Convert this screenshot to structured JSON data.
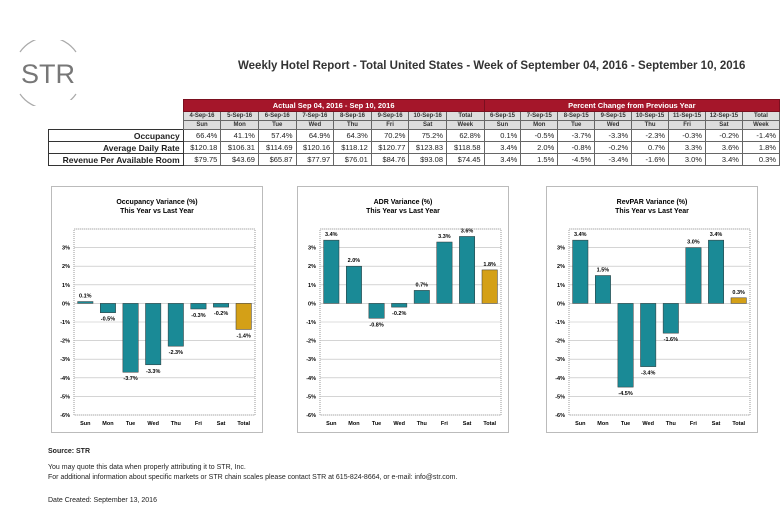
{
  "logo": {
    "text": "STR"
  },
  "title": "Weekly Hotel Report - Total United States - Week of September 04, 2016 - September 10, 2016",
  "table": {
    "actual_header": "Actual Sep 04, 2016 - Sep 10, 2016",
    "change_header": "Percent Change from Previous Year",
    "actual_dates": [
      "4-Sep-16",
      "5-Sep-16",
      "6-Sep-16",
      "7-Sep-16",
      "8-Sep-16",
      "9-Sep-16",
      "10-Sep-16",
      "Total"
    ],
    "change_dates": [
      "6-Sep-15",
      "7-Sep-15",
      "8-Sep-15",
      "9-Sep-15",
      "10-Sep-15",
      "11-Sep-15",
      "12-Sep-15",
      "Total"
    ],
    "days": [
      "Sun",
      "Mon",
      "Tue",
      "Wed",
      "Thu",
      "Fri",
      "Sat",
      "Week"
    ],
    "rows": [
      {
        "label": "Occupancy",
        "actual": [
          "66.4%",
          "41.1%",
          "57.4%",
          "64.9%",
          "64.3%",
          "70.2%",
          "75.2%",
          "62.8%"
        ],
        "change": [
          "0.1%",
          "-0.5%",
          "-3.7%",
          "-3.3%",
          "-2.3%",
          "-0.3%",
          "-0.2%",
          "-1.4%"
        ]
      },
      {
        "label": "Average Daily Rate",
        "actual": [
          "$120.18",
          "$106.31",
          "$114.69",
          "$120.16",
          "$118.12",
          "$120.77",
          "$123.83",
          "$118.58"
        ],
        "change": [
          "3.4%",
          "2.0%",
          "-0.8%",
          "-0.2%",
          "0.7%",
          "3.3%",
          "3.6%",
          "1.8%"
        ]
      },
      {
        "label": "Revenue Per Available Room",
        "actual": [
          "$79.75",
          "$43.69",
          "$65.87",
          "$77.97",
          "$76.01",
          "$84.76",
          "$93.08",
          "$74.45"
        ],
        "change": [
          "3.4%",
          "1.5%",
          "-4.5%",
          "-3.4%",
          "-1.6%",
          "3.0%",
          "3.4%",
          "0.3%"
        ]
      }
    ]
  },
  "colors": {
    "header": "#a5162a",
    "bar": "#1a8a96",
    "total_bar": "#d4a017"
  },
  "chart_data": [
    {
      "type": "bar",
      "title": "Occupancy Variance (%)",
      "subtitle": "This Year vs Last Year",
      "categories": [
        "Sun",
        "Mon",
        "Tue",
        "Wed",
        "Thu",
        "Fri",
        "Sat",
        "Total"
      ],
      "values": [
        0.1,
        -0.5,
        -3.7,
        -3.3,
        -2.3,
        -0.3,
        -0.2,
        -1.4
      ],
      "labels": [
        "0.1%",
        "-0.5%",
        "-3.7%",
        "-3.3%",
        "-2.3%",
        "-0.3%",
        "-0.2%",
        "-1.4%"
      ],
      "yticks": [
        "3%",
        "2%",
        "1%",
        "0%",
        "-1%",
        "-2%",
        "-3%",
        "-4%",
        "-5%",
        "-6%"
      ],
      "ylim": [
        -6,
        4
      ],
      "grid": true
    },
    {
      "type": "bar",
      "title": "ADR Variance (%)",
      "subtitle": "This Year vs Last Year",
      "categories": [
        "Sun",
        "Mon",
        "Tue",
        "Wed",
        "Thu",
        "Fri",
        "Sat",
        "Total"
      ],
      "values": [
        3.4,
        2.0,
        -0.8,
        -0.2,
        0.7,
        3.3,
        3.6,
        1.8
      ],
      "labels": [
        "3.4%",
        "2.0%",
        "-0.8%",
        "-0.2%",
        "0.7%",
        "3.3%",
        "3.6%",
        "1.8%"
      ],
      "yticks": [
        "3%",
        "2%",
        "1%",
        "0%",
        "-1%",
        "-2%",
        "-3%",
        "-4%",
        "-5%",
        "-6%"
      ],
      "ylim": [
        -6,
        4
      ],
      "grid": true
    },
    {
      "type": "bar",
      "title": "RevPAR Variance (%)",
      "subtitle": "This Year vs Last Year",
      "categories": [
        "Sun",
        "Mon",
        "Tue",
        "Wed",
        "Thu",
        "Fri",
        "Sat",
        "Total"
      ],
      "values": [
        3.4,
        1.5,
        -4.5,
        -3.4,
        -1.6,
        3.0,
        3.4,
        0.3
      ],
      "labels": [
        "3.4%",
        "1.5%",
        "-4.5%",
        "-3.4%",
        "-1.6%",
        "3.0%",
        "3.4%",
        "0.3%"
      ],
      "yticks": [
        "3%",
        "2%",
        "1%",
        "0%",
        "-1%",
        "-2%",
        "-3%",
        "-4%",
        "-5%",
        "-6%"
      ],
      "ylim": [
        -6,
        4
      ],
      "grid": true
    }
  ],
  "footer": {
    "source": "Source: STR",
    "line1": "You may quote this data when properly attributing it to STR, Inc.",
    "line2": "For additional information about specific markets or STR chain scales please contact STR at 615-824-8664, or e-mail: info@str.com.",
    "date": "Date Created: September 13, 2016"
  }
}
